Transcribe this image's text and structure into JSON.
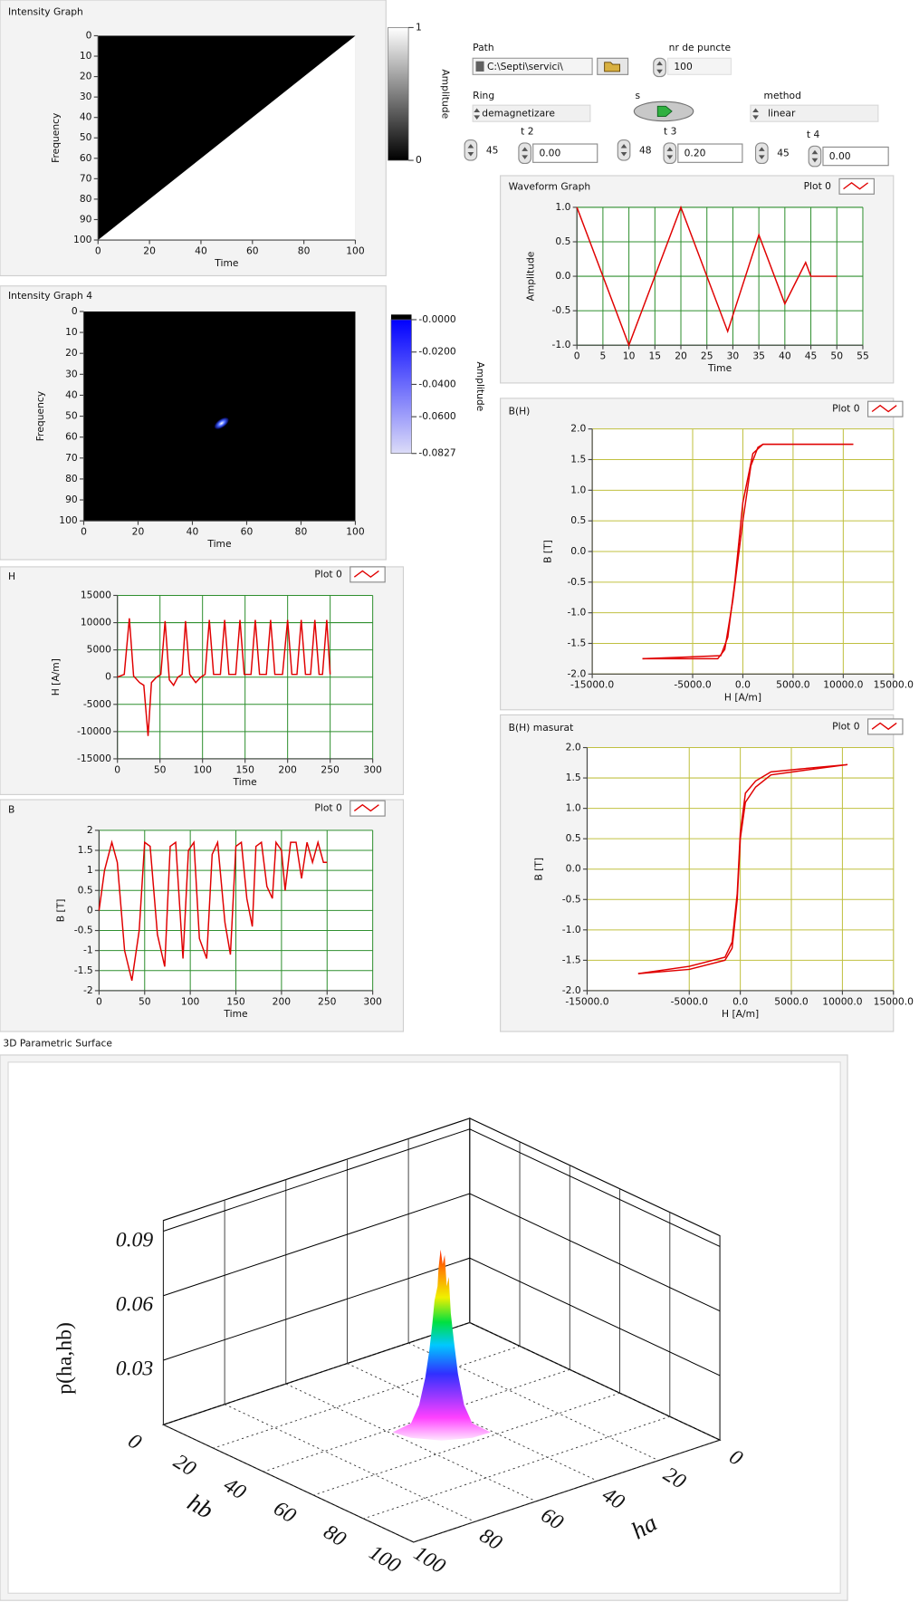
{
  "controls": {
    "path": {
      "label": "Path",
      "value": "C:\\Septi\\servici\\"
    },
    "nr_de_puncte": {
      "label": "nr de puncte",
      "value": 100
    },
    "ring": {
      "label": "Ring",
      "value": "demagnetizare"
    },
    "s": {
      "label": "s"
    },
    "method": {
      "label": "method",
      "value": "linear"
    },
    "numerics": [
      45,
      48,
      45
    ],
    "t2": {
      "label": "t 2",
      "value": "0.00"
    },
    "t3": {
      "label": "t 3",
      "value": "0.20"
    },
    "t4": {
      "label": "t 4",
      "value": "0.00"
    }
  },
  "intensity_graph": {
    "type": "intensity",
    "title": "Intensity Graph",
    "xlabel": "Time",
    "ylabel": "Frequency",
    "zlabel": "Amplitude",
    "xlim": [
      0,
      100
    ],
    "xticks": [
      0,
      20,
      40,
      60,
      80,
      100
    ],
    "ylim": [
      100,
      0
    ],
    "yticks": [
      0,
      10,
      20,
      30,
      40,
      50,
      60,
      70,
      80,
      90,
      100
    ],
    "zlim": [
      0,
      1
    ],
    "zticks": [
      1,
      0
    ],
    "colors": [
      "#000000",
      "#ffffff"
    ]
  },
  "intensity_graph_4": {
    "type": "intensity",
    "title": "Intensity Graph 4",
    "xlabel": "Time",
    "ylabel": "Frequency",
    "zlabel": "Amplitude",
    "xlim": [
      0,
      100
    ],
    "xticks": [
      0,
      20,
      40,
      60,
      80,
      100
    ],
    "ylim": [
      100,
      0
    ],
    "yticks": [
      0,
      10,
      20,
      30,
      40,
      50,
      60,
      70,
      80,
      90,
      100
    ],
    "zlim": [
      -0.0827,
      0
    ],
    "zticks": [
      {
        "value": 0,
        "label": "-0.0000"
      },
      {
        "value": -0.02,
        "label": "-0.0200"
      },
      {
        "value": -0.04,
        "label": "-0.0400"
      },
      {
        "value": -0.06,
        "label": "-0.0600"
      },
      {
        "value": -0.0827,
        "label": "-0.0827"
      }
    ],
    "colors": [
      "#dcdcf8",
      "#0000ff"
    ]
  },
  "waveform_graph": {
    "type": "line",
    "title": "Waveform Graph",
    "xlabel": "Time",
    "ylabel": "Amplitude",
    "xlim": [
      0,
      55
    ],
    "xticks": [
      0,
      5,
      10,
      15,
      20,
      25,
      30,
      35,
      40,
      45,
      50,
      55
    ],
    "ylim": [
      -1,
      1
    ],
    "yticks": [
      {
        "value": 1,
        "label": "1.0"
      },
      0.5,
      {
        "value": 0,
        "label": "0.0"
      },
      -0.5,
      {
        "value": -1,
        "label": "-1.0"
      }
    ],
    "grid": true,
    "grid_color": "#2f8f2f",
    "series": [
      {
        "name": "Plot 0",
        "color": "#e00000",
        "x": [
          0,
          10,
          20,
          29,
          35,
          40,
          44,
          45,
          50
        ],
        "values": [
          1,
          -1,
          1,
          -0.8,
          0.6,
          -0.4,
          0.2,
          0,
          0
        ]
      }
    ]
  },
  "bh_graph": {
    "type": "line",
    "title": "B(H)",
    "xlabel": "H [A/m]",
    "ylabel": "B [T]",
    "xlim": [
      -15000,
      15000
    ],
    "xticks": [
      {
        "value": -15000,
        "label": "-15000.0"
      },
      {
        "value": -5000,
        "label": "-5000.0"
      },
      {
        "value": 0,
        "label": "0.0"
      },
      {
        "value": 5000,
        "label": "5000.0"
      },
      {
        "value": 10000,
        "label": "10000.0"
      },
      {
        "value": 15000,
        "label": "15000.0"
      }
    ],
    "ylim": [
      -2,
      2
    ],
    "yticks": [
      {
        "value": 2,
        "label": "2.0"
      },
      1.5,
      {
        "value": 1,
        "label": "1.0"
      },
      0.5,
      {
        "value": 0,
        "label": "0.0"
      },
      -0.5,
      {
        "value": -1,
        "label": "-1.0"
      },
      -1.5,
      {
        "value": -2,
        "label": "-2.0"
      }
    ],
    "grid": true,
    "grid_color": "#c0c040",
    "series": [
      {
        "name": "Plot 0",
        "color": "#e00000",
        "x": [
          -10000,
          -2500,
          -1800,
          -1000,
          0,
          800,
          1500,
          2000,
          11000
        ],
        "values": [
          -1.75,
          -1.75,
          -1.6,
          -0.8,
          0.5,
          1.4,
          1.7,
          1.75,
          1.75
        ]
      },
      {
        "color": "#e00000",
        "x": [
          11000,
          2000,
          1000,
          0,
          -800,
          -1500,
          -2200,
          -10000
        ],
        "values": [
          1.75,
          1.75,
          1.6,
          0.8,
          -0.5,
          -1.4,
          -1.7,
          -1.75
        ]
      }
    ]
  },
  "bh_measured_graph": {
    "type": "line",
    "title": "B(H) masurat",
    "xlabel": "H [A/m]",
    "ylabel": "B [T]",
    "xlim": [
      -15000,
      15000
    ],
    "xticks": [
      {
        "value": -15000,
        "label": "-15000.0"
      },
      {
        "value": -5000,
        "label": "-5000.0"
      },
      {
        "value": 0,
        "label": "0.0"
      },
      {
        "value": 5000,
        "label": "5000.0"
      },
      {
        "value": 10000,
        "label": "10000.0"
      },
      {
        "value": 15000,
        "label": "15000.0"
      }
    ],
    "ylim": [
      -2,
      2
    ],
    "yticks": [
      {
        "value": 2,
        "label": "2.0"
      },
      1.5,
      {
        "value": 1,
        "label": "1.0"
      },
      0.5,
      {
        "value": 0,
        "label": "0.0"
      },
      -0.5,
      {
        "value": -1,
        "label": "-1.0"
      },
      -1.5,
      {
        "value": -2,
        "label": "-2.0"
      }
    ],
    "grid": true,
    "grid_color": "#c0c040",
    "series": [
      {
        "name": "Plot 0",
        "color": "#e00000",
        "x": [
          -10000,
          -5000,
          -1500,
          -800,
          -300,
          0,
          500,
          1500,
          3000,
          6000,
          10500
        ],
        "values": [
          -1.72,
          -1.65,
          -1.5,
          -1.3,
          -0.5,
          0.5,
          1.1,
          1.35,
          1.55,
          1.62,
          1.72
        ]
      },
      {
        "color": "#e00000",
        "x": [
          10500,
          6000,
          3000,
          1500,
          500,
          0,
          -300,
          -800,
          -1500,
          -5000,
          -10000
        ],
        "values": [
          1.72,
          1.65,
          1.6,
          1.45,
          1.25,
          0.6,
          -0.4,
          -1.2,
          -1.45,
          -1.6,
          -1.72
        ]
      }
    ]
  },
  "h_graph": {
    "type": "line",
    "title": "H",
    "xlabel": "Time",
    "ylabel": "H [A/m]",
    "xlim": [
      0,
      300
    ],
    "xticks": [
      0,
      50,
      100,
      150,
      200,
      250,
      300
    ],
    "ylim": [
      -15000,
      15000
    ],
    "yticks": [
      15000,
      10000,
      5000,
      0,
      -5000,
      -10000,
      -15000
    ],
    "grid": true,
    "grid_color": "#2f8f2f",
    "series": [
      {
        "name": "Plot 0",
        "color": "#e00000",
        "x": [
          0,
          8,
          14,
          19,
          26,
          31,
          36,
          40,
          46,
          51,
          56,
          61,
          66,
          71,
          76,
          80,
          85,
          92,
          98,
          103,
          108,
          113,
          121,
          126,
          131,
          139,
          144,
          149,
          157,
          162,
          167,
          175,
          180,
          185,
          194,
          200,
          205,
          211,
          216,
          221,
          227,
          232,
          237,
          241,
          246,
          250
        ],
        "values": [
          0,
          500,
          10800,
          200,
          -1000,
          -1500,
          -10800,
          -1000,
          0,
          500,
          10300,
          -500,
          -1500,
          0,
          500,
          10300,
          500,
          -1000,
          0,
          500,
          10500,
          500,
          500,
          10500,
          500,
          500,
          10500,
          500,
          500,
          10500,
          500,
          500,
          10500,
          500,
          500,
          10500,
          500,
          500,
          10500,
          500,
          500,
          10500,
          500,
          500,
          10500,
          500
        ]
      }
    ]
  },
  "b_graph": {
    "type": "line",
    "title": "B",
    "xlabel": "Time",
    "ylabel": "B [T]",
    "xlim": [
      0,
      300
    ],
    "xticks": [
      0,
      50,
      100,
      150,
      200,
      250,
      300
    ],
    "ylim": [
      -2,
      2
    ],
    "yticks": [
      2,
      1.5,
      1,
      0.5,
      0,
      -0.5,
      -1,
      -1.5,
      -2
    ],
    "grid": true,
    "grid_color": "#2f8f2f",
    "series": [
      {
        "name": "Plot 0",
        "color": "#e00000",
        "x": [
          0,
          6,
          14,
          20,
          28,
          36,
          44,
          50,
          56,
          64,
          72,
          78,
          84,
          92,
          98,
          104,
          110,
          118,
          124,
          130,
          138,
          144,
          150,
          156,
          162,
          168,
          172,
          178,
          184,
          190,
          194,
          200,
          204,
          210,
          216,
          222,
          228,
          234,
          240,
          246,
          250
        ],
        "values": [
          0,
          1.0,
          1.7,
          1.2,
          -1.0,
          -1.75,
          -0.5,
          1.7,
          1.6,
          -0.6,
          -1.4,
          1.6,
          1.7,
          -1.2,
          1.5,
          1.7,
          -0.7,
          -1.2,
          1.4,
          1.7,
          -0.3,
          -1.1,
          1.6,
          1.7,
          0.3,
          -0.4,
          1.6,
          1.7,
          0.6,
          0.3,
          1.7,
          1.5,
          0.5,
          1.7,
          1.7,
          0.8,
          1.7,
          1.2,
          1.7,
          1.2,
          1.2
        ]
      }
    ]
  },
  "surface_3d": {
    "type": "surface3d",
    "title": "3D Parametric Surface",
    "zlabel": "p(ha,hb)",
    "xlabel": "ha",
    "ylabel": "hb",
    "xticks": [
      0,
      20,
      40,
      60,
      80,
      100
    ],
    "yticks": [
      0,
      20,
      40,
      60,
      80,
      100
    ],
    "zlim": [
      0,
      0.095
    ],
    "zticks": [
      0.03,
      0.06,
      0.09
    ],
    "peak_value": 0.085
  }
}
